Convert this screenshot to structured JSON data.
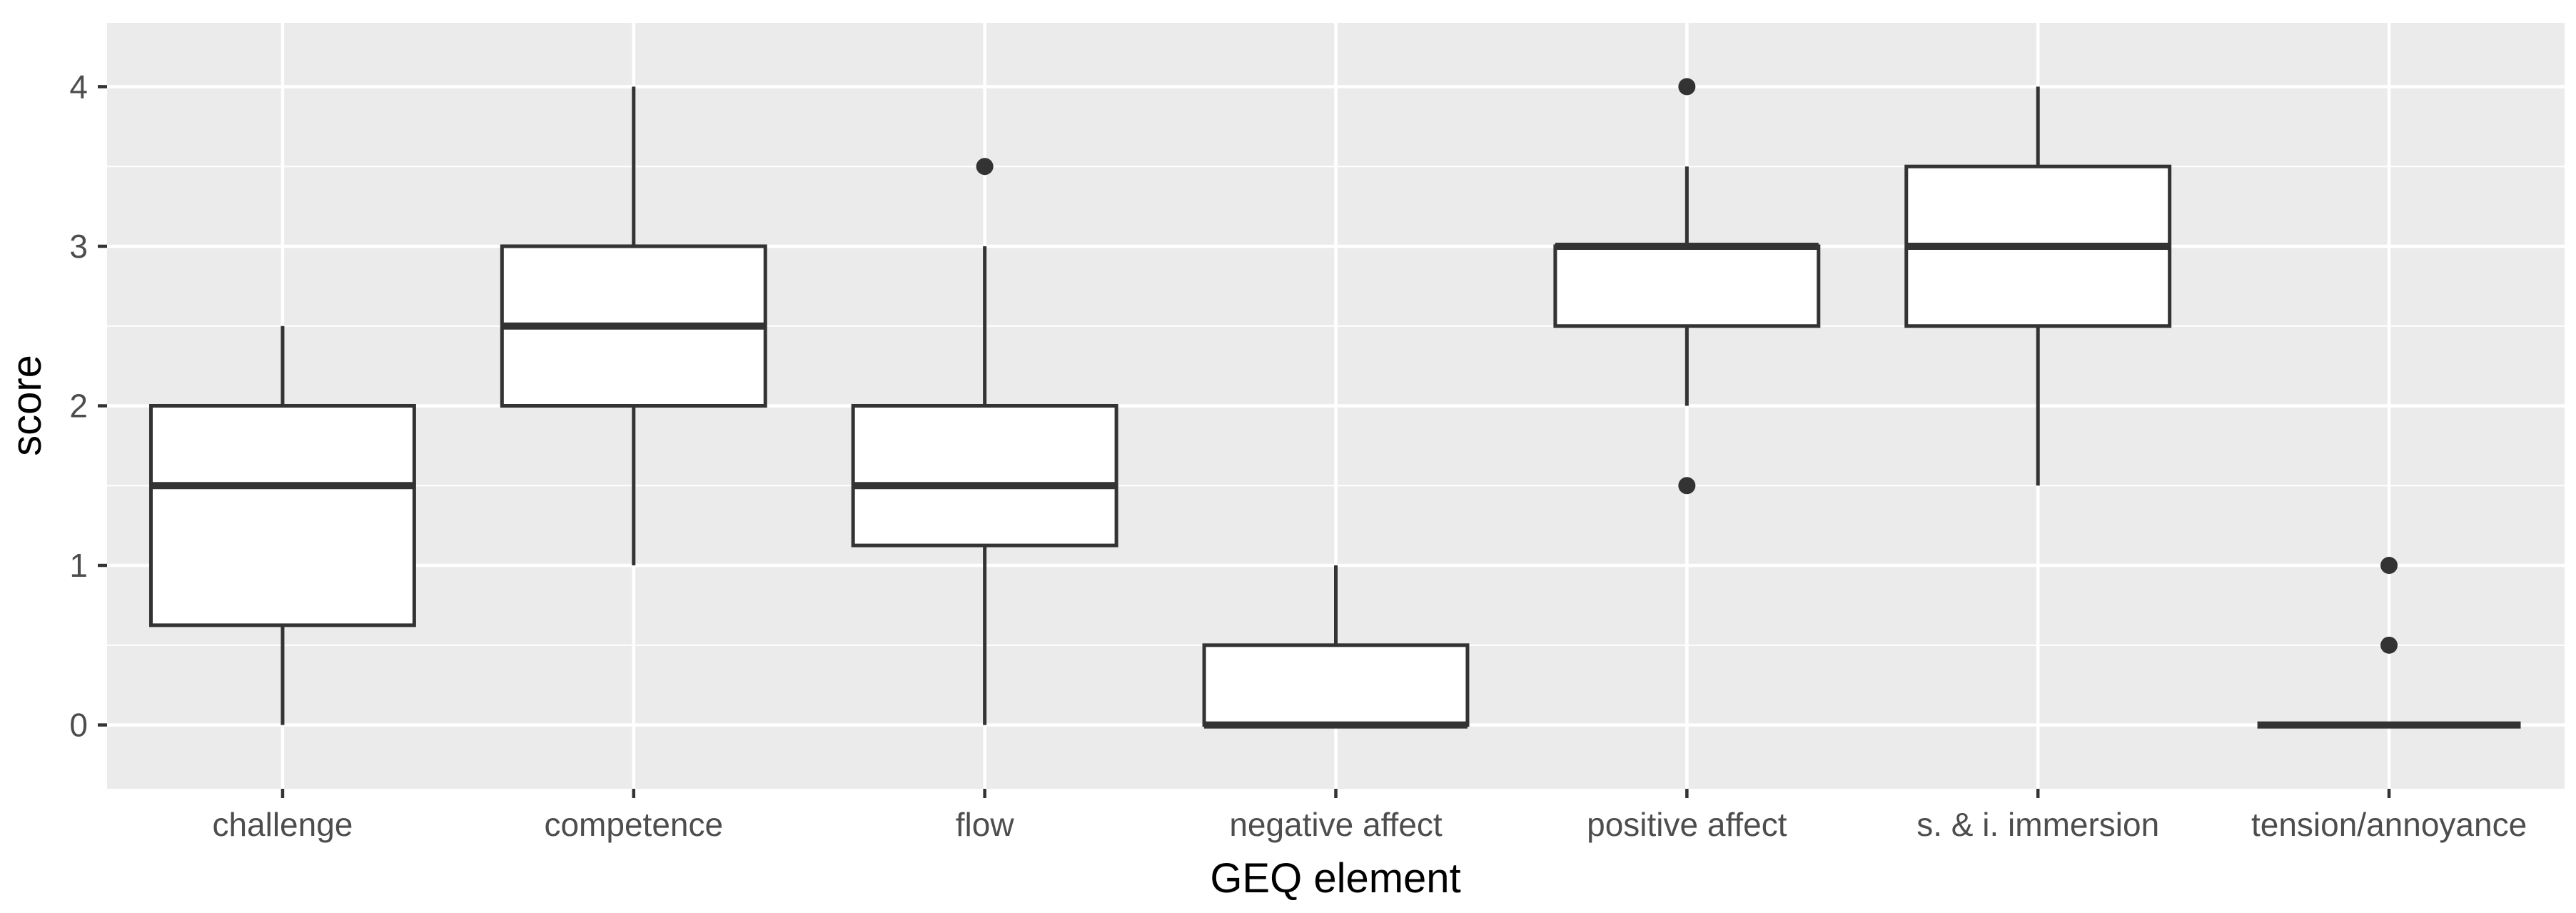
{
  "chart_data": {
    "type": "boxplot",
    "title": "",
    "xlabel": "GEQ element",
    "ylabel": "score",
    "ylim": [
      -0.4,
      4.4
    ],
    "yticks": [
      0,
      1,
      2,
      3,
      4
    ],
    "grid": true,
    "legend": "none",
    "colors": {
      "panel_background": "#ebebeb",
      "grid": "#ffffff",
      "box_fill": "#ffffff",
      "box_stroke": "#333333",
      "outlier": "#333333"
    },
    "categories": [
      "challenge",
      "competence",
      "flow",
      "negative affect",
      "positive affect",
      "s. & i. immersion",
      "tension/annoyance"
    ],
    "boxes": [
      {
        "category": "challenge",
        "lower_whisker": 0,
        "q1": 0.625,
        "median": 1.5,
        "q3": 2,
        "upper_whisker": 2.5,
        "outliers": []
      },
      {
        "category": "competence",
        "lower_whisker": 1,
        "q1": 2,
        "median": 2.5,
        "q3": 3,
        "upper_whisker": 4,
        "outliers": []
      },
      {
        "category": "flow",
        "lower_whisker": 0,
        "q1": 1.125,
        "median": 1.5,
        "q3": 2,
        "upper_whisker": 3,
        "outliers": [
          3.5
        ]
      },
      {
        "category": "negative affect",
        "lower_whisker": 0,
        "q1": 0,
        "median": 0,
        "q3": 0.5,
        "upper_whisker": 1,
        "outliers": []
      },
      {
        "category": "positive affect",
        "lower_whisker": 2,
        "q1": 2.5,
        "median": 3,
        "q3": 3,
        "upper_whisker": 3.5,
        "outliers": [
          4,
          1.5
        ]
      },
      {
        "category": "s. & i. immersion",
        "lower_whisker": 1.5,
        "q1": 2.5,
        "median": 3,
        "q3": 3.5,
        "upper_whisker": 4,
        "outliers": []
      },
      {
        "category": "tension/annoyance",
        "lower_whisker": 0,
        "q1": 0,
        "median": 0,
        "q3": 0,
        "upper_whisker": 0,
        "outliers": [
          1,
          0.5
        ]
      }
    ]
  }
}
